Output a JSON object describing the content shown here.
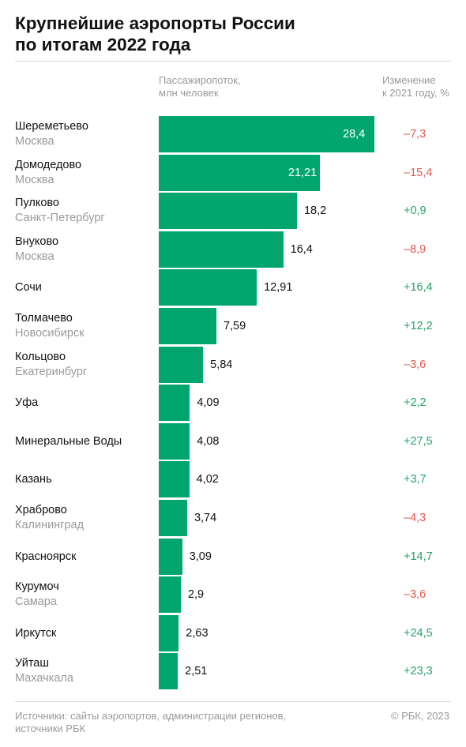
{
  "title_lines": [
    "Крупнейшие аэропорты России",
    "по итогам 2022 года"
  ],
  "headers": {
    "traffic": [
      "Пассажиропоток,",
      "млн человек"
    ],
    "change": [
      "Изменение",
      "к 2021 году, %"
    ]
  },
  "colors": {
    "bar": "#00a66e",
    "negative": "#e05a4f",
    "positive": "#27a36b"
  },
  "chart_data": {
    "type": "bar",
    "orientation": "horizontal",
    "ylabel": "Пассажиропоток, млн человек",
    "categories": [
      "Шереметьево",
      "Домодедово",
      "Пулково",
      "Внуково",
      "Сочи",
      "Толмачево",
      "Кольцово",
      "Уфа",
      "Минеральные Воды",
      "Казань",
      "Храброво",
      "Красноярск",
      "Курумоч",
      "Иркутск",
      "Уйташ"
    ],
    "cities": [
      "Москва",
      "Москва",
      "Санкт-Петербург",
      "Москва",
      "",
      "Новосибирск",
      "Екатеринбург",
      "",
      "",
      "",
      "Калининград",
      "",
      "Самара",
      "",
      "Махачкала"
    ],
    "values": [
      28.4,
      21.21,
      18.2,
      16.4,
      12.91,
      7.59,
      5.84,
      4.09,
      4.08,
      4.02,
      3.74,
      3.09,
      2.9,
      2.63,
      2.51
    ],
    "value_labels": [
      "28,4",
      "21,21",
      "18,2",
      "16,4",
      "12,91",
      "7,59",
      "5,84",
      "4,09",
      "4,08",
      "4,02",
      "3,74",
      "3,09",
      "2,9",
      "2,63",
      "2,51"
    ],
    "change_pct": [
      -7.3,
      -15.4,
      0.9,
      -8.9,
      16.4,
      12.2,
      -3.6,
      2.2,
      27.5,
      3.7,
      -4.3,
      14.7,
      -3.6,
      24.5,
      23.3
    ],
    "change_labels": [
      "–7,3",
      "–15,4",
      "+0,9",
      "–8,9",
      "+16,4",
      "+12,2",
      "–3,6",
      "+2,2",
      "+27,5",
      "+3,7",
      "–4,3",
      "+14,7",
      "–3,6",
      "+24,5",
      "+23,3"
    ],
    "xlim": [
      0,
      28.4
    ]
  },
  "footer_lines": [
    "Источники: сайты аэропортов, администрации регионов,",
    "источники РБК"
  ],
  "copyright": "© РБК, 2023"
}
